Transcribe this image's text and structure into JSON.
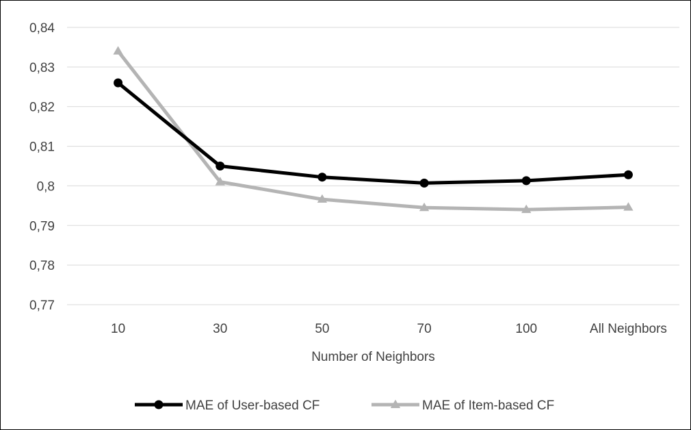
{
  "chart_data": {
    "type": "line",
    "title": "",
    "xlabel": "Number of Neighbors",
    "ylabel": "",
    "categories": [
      "10",
      "30",
      "50",
      "70",
      "100",
      "All Neighbors"
    ],
    "ylim": [
      0.77,
      0.84
    ],
    "yticks": [
      0.77,
      0.78,
      0.79,
      0.8,
      0.81,
      0.82,
      0.83,
      0.84
    ],
    "ytick_labels": [
      "0,77",
      "0,78",
      "0,79",
      "0,8",
      "0,81",
      "0,82",
      "0,83",
      "0,84"
    ],
    "grid": true,
    "legend_position": "bottom",
    "series": [
      {
        "name": "MAE of User-based CF",
        "values": [
          0.826,
          0.805,
          0.8022,
          0.8007,
          0.8013,
          0.8028
        ],
        "color": "#000000",
        "marker": "circle"
      },
      {
        "name": "MAE of Item-based CF",
        "values": [
          0.834,
          0.801,
          0.7966,
          0.7945,
          0.794,
          0.7946
        ],
        "color": "#b4b4b4",
        "marker": "triangle"
      }
    ]
  }
}
